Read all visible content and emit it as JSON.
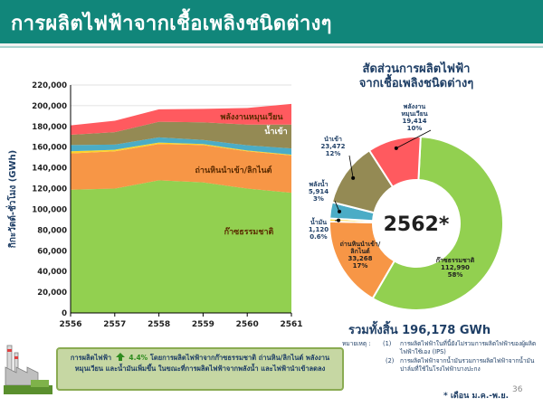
{
  "slide": {
    "title": "การผลิตไฟฟ้าจากเชื้อเพลิงชนิดต่างๆ",
    "page_number": "36",
    "footnote": "* เดือน ม.ค.-พ.ย.",
    "total": "รวมทั้งสิ้น 196,178 GWh",
    "notes": {
      "label": "หมายเหตุ :",
      "item1_no": "(1)",
      "item1": "การผลิตไฟฟ้าในที่นี้ยังไม่รวมการผลิตไฟฟ้าของผู้ผลิตไฟฟ้าใช้เอง (IPS)",
      "item2_no": "(2)",
      "item2": "การผลิตไฟฟ้าจากน้ำมันรวมการผลิตไฟฟ้าจากน้ำมันปาล์มที่ใช้ในโรงไฟฟ้าบางปะกง"
    },
    "summary": {
      "part1": "การผลิตไฟฟ้า",
      "growth": "4.4%",
      "part2": "โดยการผลิตไฟฟ้าจากก๊าซธรรมชาติ ถ่านหิน/ลิกไนต์ พลังงานหมุนเวียน และน้ำมันเพิ่มขึ้น ในขณะที่การผลิตไฟฟ้าจากพลังน้ำ และไฟฟ้านำเข้าลดลง"
    },
    "colors": {
      "header": "#11867a",
      "gas": "#92d050",
      "coal": "#f79646",
      "hydro": "#4bacc6",
      "oil": "#ffd32a",
      "import": "#948a54",
      "renewable": "#ff5a5f"
    }
  },
  "chart_data": [
    {
      "type": "area",
      "stacked": true,
      "ylabel": "กิกะวัตต์-ชั่วโมง (GWh)",
      "ylim": [
        0,
        220000
      ],
      "yticks": [
        "0",
        "20,000",
        "40,000",
        "60,000",
        "80,000",
        "100,000",
        "120,000",
        "140,000",
        "160,000",
        "180,000",
        "200,000",
        "220,000"
      ],
      "x": [
        "2556",
        "2557",
        "2558",
        "2559",
        "2560",
        "2561"
      ],
      "series": [
        {
          "name": "ก๊าซธรรมชาติ",
          "values": [
            119000,
            120000,
            128000,
            126000,
            120000,
            116000
          ]
        },
        {
          "name": "ถ่านหินนำเข้า/ลิกไนต์",
          "values": [
            35000,
            36000,
            35000,
            36000,
            36000,
            36000
          ]
        },
        {
          "name": "",
          "values": [
            2000,
            1500,
            1500,
            1000,
            800,
            800
          ]
        },
        {
          "name": "",
          "values": [
            6000,
            5000,
            5000,
            4000,
            5000,
            6000
          ]
        },
        {
          "name": "น้ำเข้า",
          "values": [
            10000,
            12000,
            15000,
            17000,
            20000,
            23000
          ]
        },
        {
          "name": "พลังงานหมุนเวียน",
          "values": [
            9000,
            11000,
            12000,
            13000,
            16000,
            20000
          ]
        }
      ]
    },
    {
      "type": "pie",
      "donut": true,
      "title": "สัดส่วนการผลิตไฟฟ้า\nจากเชื้อเพลิงชนิดต่างๆ",
      "center_label": "2562*",
      "slices": [
        {
          "name": "ก๊าซธรรมชาติ",
          "value": 112990,
          "percent": "58%"
        },
        {
          "name": "ถ่านหินนำเข้า/ลิกไนต์",
          "value": 33268,
          "percent": "17%"
        },
        {
          "name": "น้ำมัน",
          "value": 1120,
          "percent": "0.6%"
        },
        {
          "name": "พลังน้ำ",
          "value": 5914,
          "percent": "3%"
        },
        {
          "name": "นำเข้า",
          "value": 23472,
          "percent": "12%"
        },
        {
          "name": "พลังงานหมุนเวียน",
          "value": 19414,
          "percent": "10%"
        }
      ],
      "slice_labels": [
        {
          "lines": [
            "ก๊าซธรรมชาติ",
            "112,990",
            "58%"
          ]
        },
        {
          "lines": [
            "ถ่านหินนำเข้า/",
            "ลิกไนต์",
            "33,268",
            "17%"
          ]
        },
        {
          "lines": [
            "น้ำมัน",
            "1,120",
            "0.6%"
          ]
        },
        {
          "lines": [
            "พลังน้ำ",
            "5,914",
            "3%"
          ]
        },
        {
          "lines": [
            "นำเข้า",
            "23,472",
            "12%"
          ]
        },
        {
          "lines": [
            "พลังงาน",
            "หมุนเวียน",
            "19,414",
            "10%"
          ]
        }
      ]
    }
  ]
}
